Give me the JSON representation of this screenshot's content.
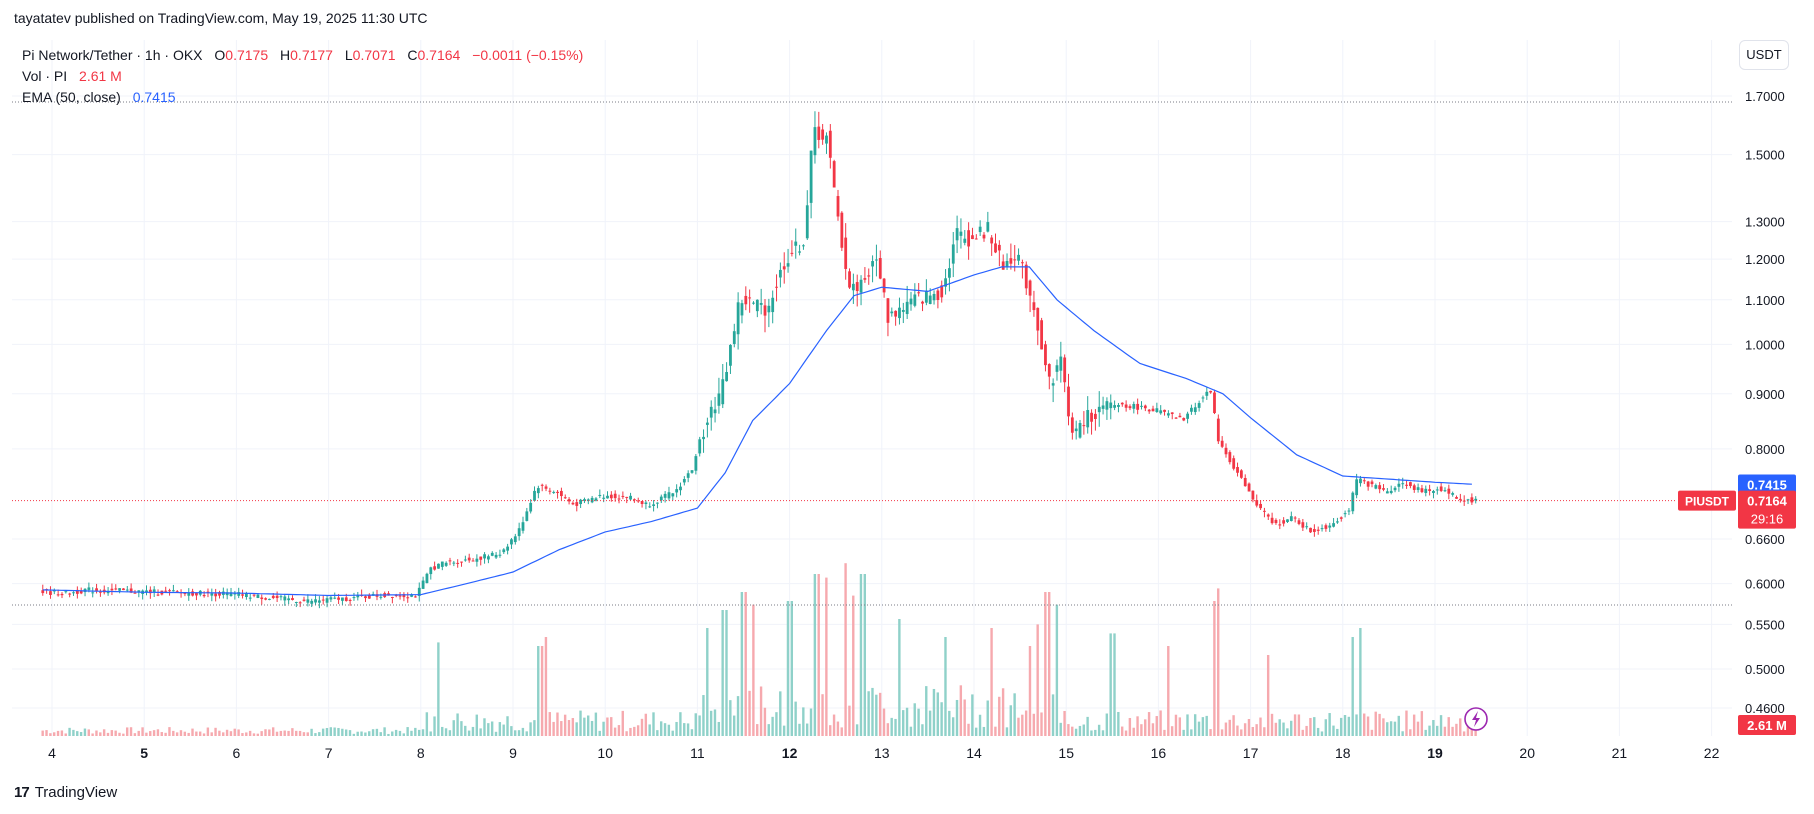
{
  "header": {
    "published_by": "tayatatev published on TradingView.com, May 19, 2025 11:30 UTC"
  },
  "legend": {
    "symbol": "Pi Network/Tether · 1h · OKX",
    "o_label": "O",
    "o_value": "0.7175",
    "h_label": "H",
    "h_value": "0.7177",
    "l_label": "L",
    "l_value": "0.7071",
    "c_label": "C",
    "c_value": "0.7164",
    "change": "−0.0011 (−0.15%)",
    "vol_label": "Vol · PI",
    "vol_value": "2.61 M",
    "ema_label": "EMA (50, close)",
    "ema_value": "0.7415"
  },
  "currency_button": "USDT",
  "footer": {
    "brand": "TradingView",
    "logo_glyph": "17"
  },
  "colors": {
    "up": "#26a69a",
    "down": "#f23645",
    "ema": "#2962ff",
    "up_vol": "#8fd1c9",
    "down_vol": "#f6a9ae",
    "grid": "#f0f3fa",
    "text": "#131722"
  },
  "chart_data": {
    "type": "candlestick",
    "symbol": "PIUSDT",
    "interval": "1h",
    "price_scale": "log",
    "y_ticks": [
      "1.7000",
      "1.5000",
      "1.3000",
      "1.2000",
      "1.1000",
      "1.0000",
      "0.9000",
      "0.8000",
      "0.6600",
      "0.6000",
      "0.5500",
      "0.5000",
      "0.4600"
    ],
    "x_ticks": [
      {
        "label": "4",
        "day": 4,
        "bold": false
      },
      {
        "label": "5",
        "day": 5,
        "bold": true
      },
      {
        "label": "6",
        "day": 6,
        "bold": false
      },
      {
        "label": "7",
        "day": 7,
        "bold": false
      },
      {
        "label": "8",
        "day": 8,
        "bold": false
      },
      {
        "label": "9",
        "day": 9,
        "bold": false
      },
      {
        "label": "10",
        "day": 10,
        "bold": false
      },
      {
        "label": "11",
        "day": 11,
        "bold": false
      },
      {
        "label": "12",
        "day": 12,
        "bold": true
      },
      {
        "label": "13",
        "day": 13,
        "bold": false
      },
      {
        "label": "14",
        "day": 14,
        "bold": false
      },
      {
        "label": "15",
        "day": 15,
        "bold": false
      },
      {
        "label": "16",
        "day": 16,
        "bold": false
      },
      {
        "label": "17",
        "day": 17,
        "bold": false
      },
      {
        "label": "18",
        "day": 18,
        "bold": false
      },
      {
        "label": "19",
        "day": 19,
        "bold": true
      },
      {
        "label": "20",
        "day": 20,
        "bold": false
      },
      {
        "label": "21",
        "day": 21,
        "bold": false
      },
      {
        "label": "22",
        "day": 22,
        "bold": false
      }
    ],
    "ema_label": {
      "text": "0.7415",
      "value": 0.7415
    },
    "last_price_label": {
      "symbol": "PIUSDT",
      "price": "0.7164",
      "countdown": "29:16",
      "value": 0.7164
    },
    "volume_label": {
      "text": "2.61 M"
    },
    "price_path": [
      [
        3.9,
        0.59
      ],
      [
        4.2,
        0.587
      ],
      [
        4.4,
        0.592
      ],
      [
        5.0,
        0.59
      ],
      [
        5.5,
        0.588
      ],
      [
        6.0,
        0.587
      ],
      [
        6.4,
        0.582
      ],
      [
        6.8,
        0.578
      ],
      [
        7.2,
        0.581
      ],
      [
        7.6,
        0.585
      ],
      [
        8.0,
        0.586
      ],
      [
        8.15,
        0.62
      ],
      [
        8.3,
        0.627
      ],
      [
        8.6,
        0.632
      ],
      [
        8.9,
        0.64
      ],
      [
        9.1,
        0.67
      ],
      [
        9.3,
        0.74
      ],
      [
        9.5,
        0.73
      ],
      [
        9.7,
        0.71
      ],
      [
        10.0,
        0.724
      ],
      [
        10.3,
        0.722
      ],
      [
        10.5,
        0.71
      ],
      [
        10.8,
        0.73
      ],
      [
        11.0,
        0.77
      ],
      [
        11.15,
        0.86
      ],
      [
        11.3,
        0.9
      ],
      [
        11.5,
        1.1
      ],
      [
        11.8,
        1.08
      ],
      [
        12.0,
        1.2
      ],
      [
        12.2,
        1.25
      ],
      [
        12.3,
        1.58
      ],
      [
        12.45,
        1.55
      ],
      [
        12.55,
        1.33
      ],
      [
        12.7,
        1.12
      ],
      [
        12.85,
        1.15
      ],
      [
        13.0,
        1.2
      ],
      [
        13.1,
        1.06
      ],
      [
        13.4,
        1.1
      ],
      [
        13.7,
        1.12
      ],
      [
        13.85,
        1.27
      ],
      [
        14.0,
        1.25
      ],
      [
        14.2,
        1.28
      ],
      [
        14.35,
        1.18
      ],
      [
        14.5,
        1.22
      ],
      [
        14.7,
        1.08
      ],
      [
        14.85,
        0.92
      ],
      [
        15.0,
        0.97
      ],
      [
        15.1,
        0.82
      ],
      [
        15.3,
        0.86
      ],
      [
        15.6,
        0.88
      ],
      [
        16.0,
        0.87
      ],
      [
        16.3,
        0.85
      ],
      [
        16.6,
        0.91
      ],
      [
        16.7,
        0.81
      ],
      [
        16.9,
        0.76
      ],
      [
        17.1,
        0.71
      ],
      [
        17.3,
        0.68
      ],
      [
        17.5,
        0.69
      ],
      [
        17.7,
        0.67
      ],
      [
        17.9,
        0.68
      ],
      [
        18.1,
        0.7
      ],
      [
        18.2,
        0.75
      ],
      [
        18.5,
        0.73
      ],
      [
        18.7,
        0.745
      ],
      [
        18.9,
        0.73
      ],
      [
        19.1,
        0.735
      ],
      [
        19.3,
        0.72
      ],
      [
        19.45,
        0.7164
      ]
    ],
    "ema_path": [
      [
        3.9,
        0.592
      ],
      [
        5.0,
        0.589
      ],
      [
        6.0,
        0.588
      ],
      [
        7.0,
        0.585
      ],
      [
        8.0,
        0.586
      ],
      [
        8.5,
        0.6
      ],
      [
        9.0,
        0.615
      ],
      [
        9.5,
        0.645
      ],
      [
        10.0,
        0.67
      ],
      [
        10.5,
        0.685
      ],
      [
        11.0,
        0.705
      ],
      [
        11.3,
        0.76
      ],
      [
        11.6,
        0.85
      ],
      [
        12.0,
        0.92
      ],
      [
        12.4,
        1.03
      ],
      [
        12.7,
        1.11
      ],
      [
        13.0,
        1.13
      ],
      [
        13.5,
        1.12
      ],
      [
        14.0,
        1.16
      ],
      [
        14.3,
        1.18
      ],
      [
        14.6,
        1.18
      ],
      [
        14.9,
        1.1
      ],
      [
        15.3,
        1.03
      ],
      [
        15.8,
        0.96
      ],
      [
        16.3,
        0.93
      ],
      [
        16.7,
        0.9
      ],
      [
        17.0,
        0.855
      ],
      [
        17.5,
        0.79
      ],
      [
        18.0,
        0.755
      ],
      [
        18.5,
        0.75
      ],
      [
        19.0,
        0.745
      ],
      [
        19.45,
        0.7415
      ]
    ],
    "volume_spikes": [
      [
        8.2,
        0.52
      ],
      [
        9.3,
        0.5
      ],
      [
        9.35,
        0.55
      ],
      [
        11.1,
        0.6
      ],
      [
        11.3,
        0.7
      ],
      [
        11.5,
        0.8
      ],
      [
        11.6,
        0.73
      ],
      [
        12.0,
        0.75
      ],
      [
        12.3,
        0.9
      ],
      [
        12.4,
        0.88
      ],
      [
        12.6,
        0.96
      ],
      [
        12.7,
        0.78
      ],
      [
        12.8,
        0.9
      ],
      [
        13.2,
        0.65
      ],
      [
        13.7,
        0.55
      ],
      [
        14.2,
        0.6
      ],
      [
        14.6,
        0.5
      ],
      [
        14.7,
        0.62
      ],
      [
        14.8,
        0.8
      ],
      [
        14.9,
        0.73
      ],
      [
        15.5,
        0.57
      ],
      [
        16.1,
        0.5
      ],
      [
        16.6,
        0.75
      ],
      [
        16.65,
        0.82
      ],
      [
        17.2,
        0.45
      ],
      [
        18.1,
        0.55
      ],
      [
        18.2,
        0.6
      ]
    ]
  }
}
